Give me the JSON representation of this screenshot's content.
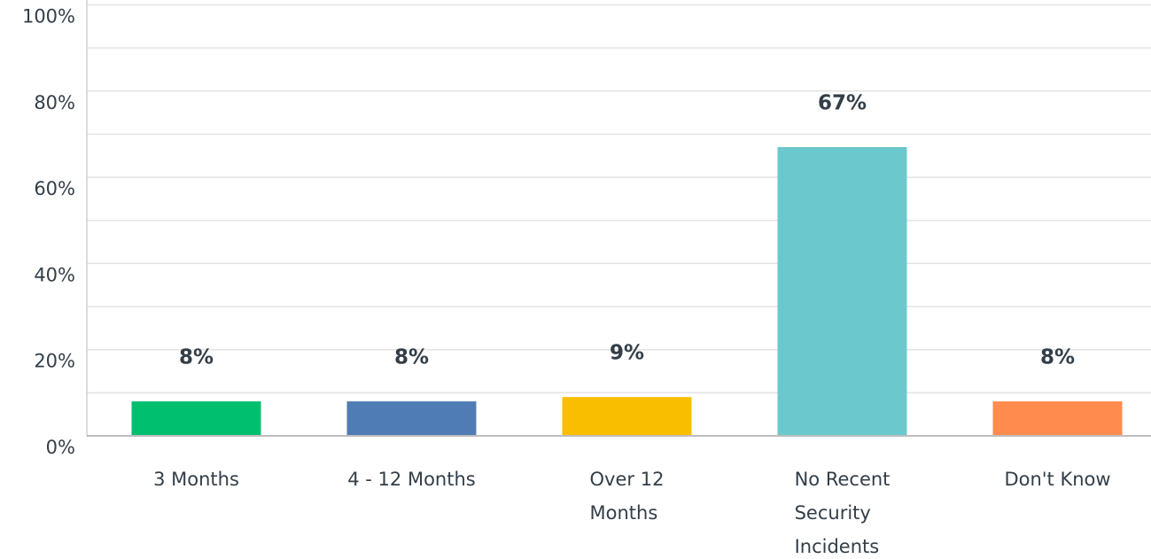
{
  "chart_data": {
    "type": "bar",
    "categories": [
      "3 Months",
      "4 - 12 Months",
      "Over 12 Months",
      "No Recent Security Incidents",
      "Don't Know"
    ],
    "values": [
      8,
      8,
      9,
      67,
      8
    ],
    "value_labels": [
      "8%",
      "8%",
      "9%",
      "67%",
      "8%"
    ],
    "colors": [
      "#00bf6f",
      "#507cb6",
      "#f9be00",
      "#6bc8cd",
      "#ff8b4f"
    ],
    "ylim": [
      0,
      100
    ],
    "yticks": [
      {
        "value": 0,
        "label": "0%"
      },
      {
        "value": 20,
        "label": "20%"
      },
      {
        "value": 40,
        "label": "40%"
      },
      {
        "value": 60,
        "label": "60%"
      },
      {
        "value": 80,
        "label": "80%"
      },
      {
        "value": 100,
        "label": "100%"
      }
    ],
    "minor_yticks": [
      10,
      30,
      50,
      70,
      90
    ],
    "grid": true
  }
}
